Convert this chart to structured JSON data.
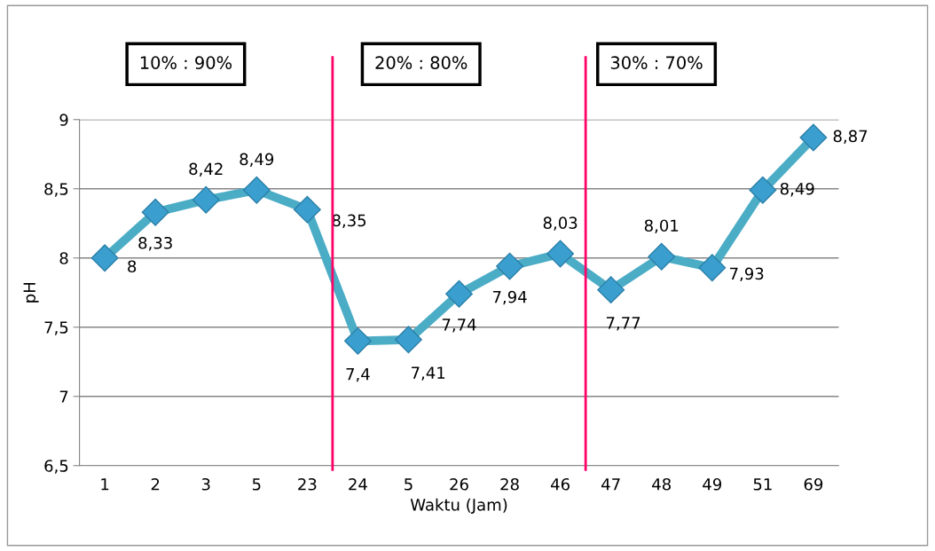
{
  "chart_data": {
    "type": "line",
    "categories": [
      "1",
      "2",
      "3",
      "5",
      "23",
      "24",
      "5",
      "26",
      "28",
      "46",
      "47",
      "48",
      "49",
      "51",
      "69"
    ],
    "series": [
      {
        "color": "#4bacc6",
        "values": [
          8,
          8.33,
          8.42,
          8.49,
          8.35,
          7.4,
          7.41,
          7.74,
          7.94,
          8.03,
          7.77,
          8.01,
          7.93,
          8.49,
          8.87
        ],
        "value_labels": [
          "8",
          "8,33",
          "8,42",
          "8,49",
          "8,35",
          "7,4",
          "7,41",
          "7,74",
          "7,94",
          "8,03",
          "7,77",
          "8,01",
          "7,93",
          "8,49",
          "8,87"
        ]
      }
    ],
    "xlabel": "Waktu (Jam)",
    "ylabel": "pH",
    "ylim": [
      6.5,
      9
    ],
    "yticks": [
      {
        "value": 6.5,
        "label": "6,5"
      },
      {
        "value": 7,
        "label": "7"
      },
      {
        "value": 7.5,
        "label": "7,5"
      },
      {
        "value": 8,
        "label": "8"
      },
      {
        "value": 8.5,
        "label": "8,5"
      },
      {
        "value": 9,
        "label": "9"
      }
    ],
    "grid": "y",
    "legend": false,
    "marker": "diamond",
    "line_style": "solid",
    "annotations": [
      "10% : 90%",
      "20% : 80%",
      "30% : 70%"
    ]
  }
}
